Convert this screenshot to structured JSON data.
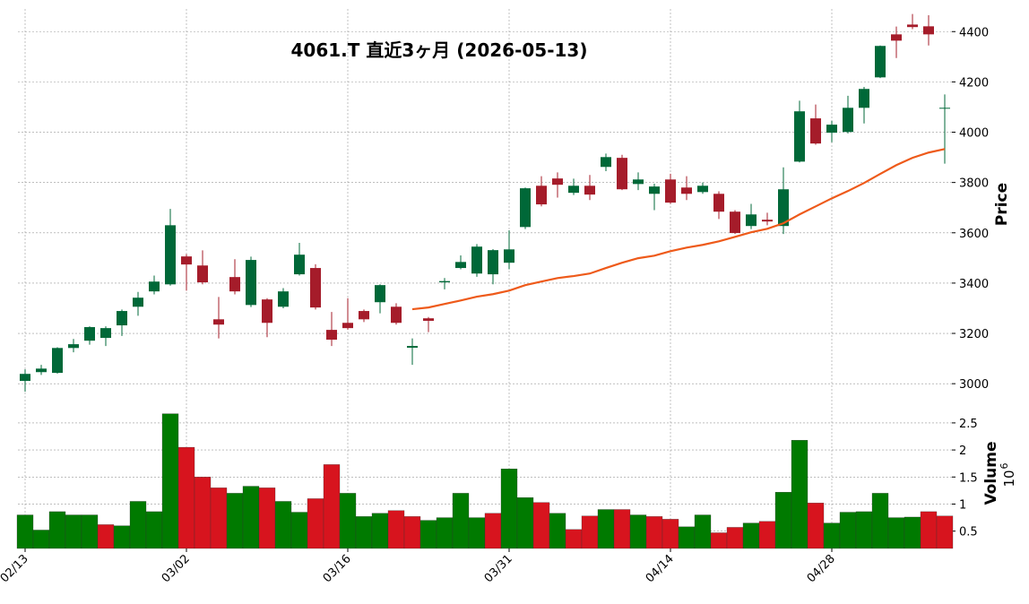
{
  "chart_data": {
    "type": "candlestick",
    "title": "4061.T 直近3ヶ月 (2026-05-13)",
    "ylabel": "Price",
    "categories": [
      "02/13",
      null,
      null,
      null,
      null,
      null,
      null,
      null,
      null,
      null,
      "03/02",
      null,
      null,
      null,
      null,
      null,
      null,
      null,
      null,
      null,
      "03/16",
      null,
      null,
      null,
      null,
      null,
      null,
      null,
      null,
      null,
      "03/31",
      null,
      null,
      null,
      null,
      null,
      null,
      null,
      null,
      null,
      "04/14",
      null,
      null,
      null,
      null,
      null,
      null,
      null,
      null,
      null,
      "04/28",
      null,
      null,
      null,
      null,
      null,
      null,
      null
    ],
    "open": [
      3011,
      3046,
      3043,
      3142,
      3171,
      3182,
      3232,
      3306,
      3367,
      3395,
      3506,
      3470,
      3256,
      3424,
      3313,
      3335,
      3306,
      3435,
      3460,
      3214,
      3242,
      3289,
      3324,
      3306,
      3143,
      3260,
      3403,
      3460,
      3438,
      3435,
      3481,
      3623,
      3787,
      3816,
      3759,
      3787,
      3862,
      3898,
      3794,
      3755,
      3812,
      3780,
      3762,
      3755,
      3684,
      3627,
      3652,
      3627,
      3883,
      4055,
      3998,
      4001,
      4097,
      4218,
      4389,
      4428,
      4421,
      4095
    ],
    "high": [
      3057,
      3075,
      3145,
      3178,
      3228,
      3228,
      3295,
      3365,
      3430,
      3695,
      3515,
      3530,
      3345,
      3495,
      3505,
      3340,
      3380,
      3560,
      3475,
      3285,
      3340,
      3295,
      3395,
      3320,
      3180,
      3265,
      3420,
      3510,
      3555,
      3535,
      3610,
      3780,
      3825,
      3840,
      3815,
      3830,
      3915,
      3910,
      3840,
      3795,
      3835,
      3825,
      3800,
      3765,
      3690,
      3715,
      3680,
      3860,
      4125,
      4110,
      4045,
      4145,
      4180,
      4345,
      4420,
      4470,
      4465,
      4150
    ],
    "low": [
      2968,
      3035,
      3040,
      3125,
      3155,
      3150,
      3190,
      3270,
      3355,
      3390,
      3370,
      3395,
      3180,
      3355,
      3305,
      3185,
      3300,
      3430,
      3295,
      3150,
      3215,
      3245,
      3280,
      3235,
      3075,
      3205,
      3375,
      3455,
      3425,
      3395,
      3455,
      3615,
      3705,
      3740,
      3750,
      3730,
      3845,
      3770,
      3770,
      3690,
      3715,
      3730,
      3755,
      3655,
      3595,
      3615,
      3630,
      3595,
      3880,
      3950,
      3960,
      3995,
      4035,
      4215,
      4295,
      4410,
      4345,
      3875
    ],
    "close": [
      3039,
      3060,
      3142,
      3157,
      3225,
      3221,
      3289,
      3342,
      3406,
      3630,
      3474,
      3403,
      3235,
      3367,
      3492,
      3242,
      3367,
      3513,
      3303,
      3175,
      3221,
      3256,
      3392,
      3242,
      3150,
      3250,
      3408,
      3484,
      3545,
      3531,
      3534,
      3777,
      3713,
      3791,
      3787,
      3752,
      3901,
      3773,
      3812,
      3784,
      3720,
      3755,
      3787,
      3684,
      3599,
      3673,
      3645,
      3773,
      4083,
      3955,
      4030,
      4097,
      4172,
      4343,
      4364,
      4418,
      4389,
      4097
    ],
    "up_color": "#006838",
    "down_color": "#a51c2a",
    "ma": {
      "color": "#ee5a1a",
      "values": [
        null,
        null,
        null,
        null,
        null,
        null,
        null,
        null,
        null,
        null,
        null,
        null,
        null,
        null,
        null,
        null,
        null,
        null,
        null,
        null,
        null,
        null,
        null,
        null,
        3296,
        3303,
        3317,
        3331,
        3346,
        3356,
        3370,
        3392,
        3406,
        3420,
        3428,
        3438,
        3460,
        3481,
        3499,
        3509,
        3527,
        3541,
        3552,
        3566,
        3584,
        3602,
        3616,
        3638,
        3673,
        3705,
        3737,
        3766,
        3798,
        3834,
        3869,
        3898,
        3919,
        3933
      ]
    },
    "ylim": [
      2940,
      4490
    ],
    "yticks": [
      3000,
      3200,
      3400,
      3600,
      3800,
      4000,
      4200,
      4400
    ],
    "grid": true,
    "volume": {
      "label": "Volume",
      "multiplier": {
        "base": "10",
        "exponent": "6"
      },
      "up_color": "#007a00",
      "down_color": "#d7141e",
      "values": [
        0.8,
        0.52,
        0.86,
        0.8,
        0.8,
        0.62,
        0.6,
        1.05,
        0.86,
        2.67,
        2.05,
        1.5,
        1.3,
        1.2,
        1.33,
        1.3,
        1.05,
        0.85,
        1.1,
        1.73,
        1.2,
        0.77,
        0.83,
        0.88,
        0.77,
        0.7,
        0.75,
        1.2,
        0.75,
        0.83,
        1.65,
        1.12,
        1.03,
        0.83,
        0.53,
        0.78,
        0.9,
        0.9,
        0.8,
        0.77,
        0.72,
        0.58,
        0.8,
        0.47,
        0.57,
        0.65,
        0.68,
        1.22,
        2.18,
        1.02,
        0.65,
        0.85,
        0.86,
        1.2,
        0.75,
        0.76,
        0.86,
        0.78
      ],
      "ylim": [
        0.18,
        2.78
      ],
      "yticks": [
        0.5,
        1.0,
        1.5,
        2.0,
        2.5
      ]
    }
  }
}
